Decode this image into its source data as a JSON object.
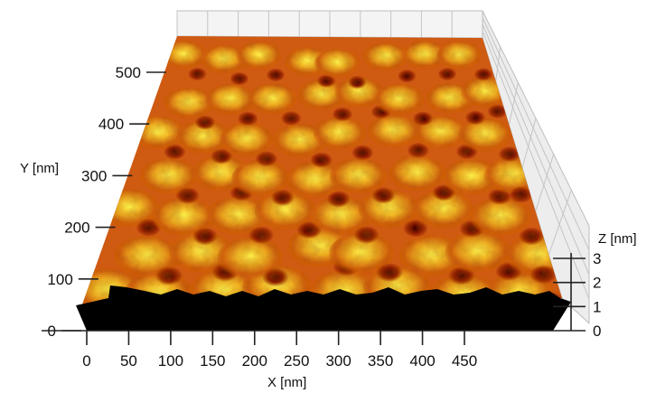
{
  "chart_data": {
    "type": "surface",
    "title": "",
    "xlabel": "X [nm]",
    "ylabel": "Y [nm]",
    "zlabel": "Z [nm]",
    "x_ticks": [
      0,
      50,
      100,
      150,
      200,
      250,
      300,
      350,
      400,
      450
    ],
    "y_ticks": [
      0,
      100,
      200,
      300,
      400,
      500
    ],
    "z_ticks": [
      0,
      1,
      2,
      3
    ],
    "xlim": [
      0,
      500
    ],
    "ylim": [
      0,
      580
    ],
    "zlim": [
      0,
      3.5
    ],
    "grid": true,
    "colormap": [
      "#1a0000",
      "#7a1400",
      "#c8440a",
      "#f0a020",
      "#fff060"
    ]
  }
}
